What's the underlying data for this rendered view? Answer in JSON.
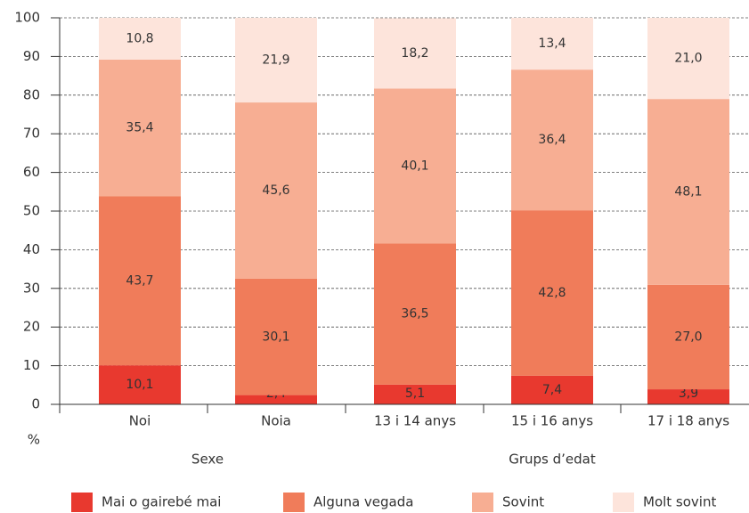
{
  "chart_data": {
    "type": "stacked_bar",
    "y_label": "%",
    "categories": [
      "Noi",
      "Noia",
      "13 i 14 anys",
      "15 i 16 anys",
      "17 i 18 anys"
    ],
    "group_labels": [
      "Sexe",
      "Grups d’edat"
    ],
    "series": [
      {
        "name": "Mai o gairebé mai",
        "color": "#e8392f",
        "values": [
          10.1,
          2.4,
          5.1,
          7.4,
          3.9
        ],
        "value_labels": [
          "10,1",
          "2,4",
          "5,1",
          "7,4",
          "3,9"
        ]
      },
      {
        "name": "Alguna vegada",
        "color": "#f07c5a",
        "values": [
          43.7,
          30.1,
          36.5,
          42.8,
          27.0
        ],
        "value_labels": [
          "43,7",
          "30,1",
          "36,5",
          "42,8",
          "27,0"
        ]
      },
      {
        "name": "Sovint",
        "color": "#f7ae93",
        "values": [
          35.4,
          45.6,
          40.1,
          36.4,
          48.1
        ],
        "value_labels": [
          "35,4",
          "45,6",
          "40,1",
          "36,4",
          "48,1"
        ]
      },
      {
        "name": "Molt sovint",
        "color": "#fde4db",
        "values": [
          10.8,
          21.9,
          18.2,
          13.4,
          21.0
        ],
        "value_labels": [
          "10,8",
          "21,9",
          "18,2",
          "13,4",
          "21,0"
        ]
      }
    ],
    "ylim": [
      0,
      100
    ],
    "yticks": [
      0,
      10,
      20,
      30,
      40,
      50,
      60,
      70,
      80,
      90,
      100
    ],
    "grid": true
  }
}
